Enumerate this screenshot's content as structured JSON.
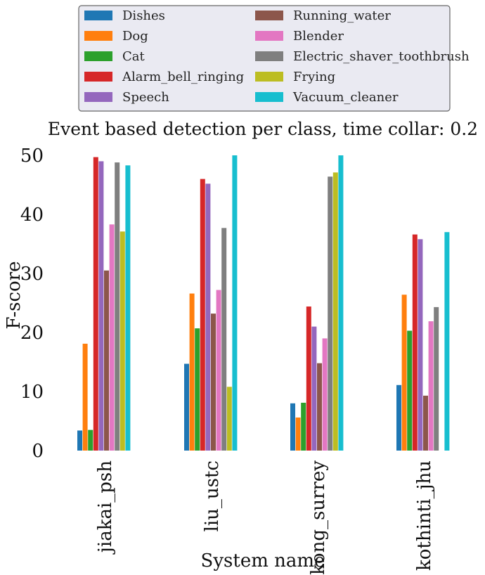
{
  "chart_data": {
    "type": "bar",
    "title": "Event based detection per class, time collar: 0.2",
    "xlabel": "System name",
    "ylabel": "F-score",
    "ylim": [
      0,
      50
    ],
    "yticks": [
      0,
      10,
      20,
      30,
      40,
      50
    ],
    "grid": false,
    "legend_position": "top",
    "categories": [
      "jiakai_psh",
      "liu_ustc",
      "kong_surrey",
      "kothinti_jhu"
    ],
    "series": [
      {
        "name": "Dishes",
        "color": "#1f77b4",
        "values": [
          3.4,
          14.7,
          8.0,
          11.1
        ]
      },
      {
        "name": "Dog",
        "color": "#ff7f0e",
        "values": [
          18.1,
          26.6,
          5.6,
          26.4
        ]
      },
      {
        "name": "Cat",
        "color": "#2ca02c",
        "values": [
          3.5,
          20.7,
          8.1,
          20.3
        ]
      },
      {
        "name": "Alarm_bell_ringing",
        "color": "#d62728",
        "values": [
          49.7,
          46.0,
          24.4,
          36.6
        ]
      },
      {
        "name": "Speech",
        "color": "#9467bd",
        "values": [
          49.0,
          45.2,
          21.0,
          35.8
        ]
      },
      {
        "name": "Running_water",
        "color": "#8c564b",
        "values": [
          30.5,
          23.2,
          14.8,
          9.3
        ]
      },
      {
        "name": "Blender",
        "color": "#e377c2",
        "values": [
          38.3,
          27.2,
          19.0,
          21.9
        ]
      },
      {
        "name": "Electric_shaver_toothbrush",
        "color": "#7f7f7f",
        "values": [
          48.8,
          37.7,
          46.4,
          24.3
        ]
      },
      {
        "name": "Frying",
        "color": "#bcbd22",
        "values": [
          37.1,
          10.8,
          47.1,
          0
        ]
      },
      {
        "name": "Vacuum_cleaner",
        "color": "#17becf",
        "values": [
          48.3,
          50.0,
          50.0,
          37.0
        ]
      }
    ]
  }
}
